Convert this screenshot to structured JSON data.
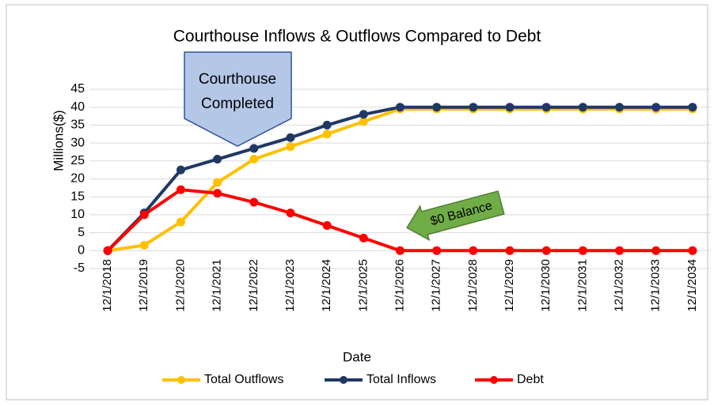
{
  "chart_data": {
    "type": "line",
    "title": "Courthouse Inflows & Outflows Compared to Debt",
    "x_label": "Date",
    "y_label": "Millions($)",
    "categories": [
      "12/1/2018",
      "12/1/2019",
      "12/1/2020",
      "12/1/2021",
      "12/1/2022",
      "12/1/2023",
      "12/1/2024",
      "12/1/2025",
      "12/1/2026",
      "12/1/2027",
      "12/1/2028",
      "12/1/2029",
      "12/1/2030",
      "12/1/2031",
      "12/1/2032",
      "12/1/2033",
      "12/1/2034"
    ],
    "series": [
      {
        "name": "Total Outflows",
        "color": "#ffc000",
        "values": [
          0,
          1.5,
          8,
          19,
          25.5,
          29,
          32.5,
          36,
          39.5,
          39.5,
          39.5,
          39.5,
          39.5,
          39.5,
          39.5,
          39.5,
          39.5
        ]
      },
      {
        "name": "Total Inflows",
        "color": "#203864",
        "values": [
          0,
          10.5,
          22.5,
          25.5,
          28.5,
          31.5,
          35,
          38,
          40,
          40,
          40,
          40,
          40,
          40,
          40,
          40,
          40
        ]
      },
      {
        "name": "Debt",
        "color": "#ff0000",
        "values": [
          0,
          10,
          17,
          16,
          13.5,
          10.5,
          7,
          3.5,
          0,
          0,
          0,
          0,
          0,
          0,
          0,
          0,
          0
        ]
      }
    ],
    "ylim": [
      -5,
      45
    ],
    "yticks": [
      -5,
      0,
      5,
      10,
      15,
      20,
      25,
      30,
      35,
      40,
      45
    ],
    "grid": true,
    "legend": "bottom",
    "annotations": [
      {
        "lines": [
          "Courthouse",
          "Completed"
        ]
      },
      {
        "lines": [
          "$0 Balance"
        ]
      }
    ]
  }
}
